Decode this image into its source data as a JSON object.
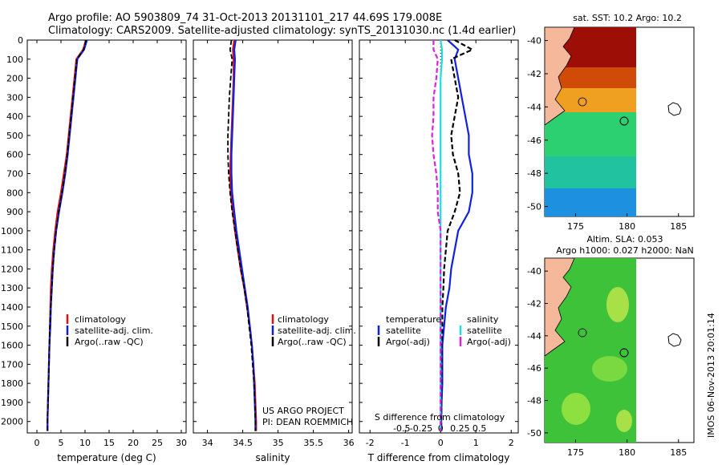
{
  "header": {
    "line1": "Argo profile: AO 5903809_74 31-Oct-2013 20131101_217 44.69S 179.008E",
    "line2": "Climatology: CARS2009. Satellite-adjusted climatology: synTS_20131030.nc (1.4d earlier)"
  },
  "panel1": {
    "xlabel": "temperature (deg C)",
    "xticks": [
      0,
      5,
      10,
      15,
      20,
      25,
      30
    ],
    "xlim": [
      -2,
      31
    ],
    "legend": [
      "climatology",
      "satellite-adj. clim.",
      "Argo(..raw -QC)"
    ]
  },
  "panel2": {
    "xlabel": "salinity",
    "xticks": [
      34,
      34.5,
      35,
      35.5,
      36
    ],
    "xlim": [
      33.8,
      36.05
    ],
    "legend": [
      "climatology",
      "satellite-adj. clim.",
      "Argo(..raw -QC)"
    ],
    "note1": "US ARGO PROJECT",
    "note2": "PI: DEAN ROEMMICH"
  },
  "panel3": {
    "xlabel": "T difference from climatology",
    "top_axis_label": "S difference from climatology",
    "xticks": [
      -2,
      -1,
      0,
      1,
      2
    ],
    "xlim": [
      -2.3,
      2.2
    ],
    "sticks_labels": [
      "-0.5",
      "-0.25",
      "0",
      "0.25",
      "0.5"
    ],
    "sticks_values": [
      -0.5,
      -0.25,
      0,
      0.25,
      0.5
    ],
    "legend_temp_title": "temperature",
    "legend_sal_title": "salinity",
    "legend_temp": [
      "satellite",
      "Argo(-adj)"
    ],
    "legend_sal": [
      "satellite",
      "Argo(-adj)"
    ]
  },
  "depth_axis": {
    "ticks": [
      0,
      100,
      200,
      300,
      400,
      500,
      600,
      700,
      800,
      900,
      1000,
      1100,
      1200,
      1300,
      1400,
      1500,
      1600,
      1700,
      1800,
      1900,
      2000
    ],
    "ylim": [
      0,
      2060
    ]
  },
  "map1": {
    "title": "sat. SST: 10.2 Argo: 10.2",
    "xticks": [
      175,
      180,
      185
    ],
    "yticks": [
      -40,
      -42,
      -44,
      -46,
      -48,
      -50
    ]
  },
  "map2": {
    "title1": "Altim. SLA: 0.053",
    "title2": "Argo h1000: 0.027 h2000: NaN",
    "xticks": [
      175,
      180,
      185
    ],
    "yticks": [
      -40,
      -42,
      -44,
      -46,
      -48,
      -50
    ]
  },
  "side_label": "IMOS 06-Nov-2013 20:01:14",
  "colors": {
    "clim": "#e01010",
    "sat": "#1020e0",
    "argo": "#000000",
    "cyan": "#22dddd",
    "magenta": "#dd22dd"
  },
  "chart_data": {
    "type": "line",
    "depth": [
      0,
      50,
      100,
      200,
      300,
      400,
      500,
      600,
      700,
      800,
      900,
      1000,
      1100,
      1200,
      1300,
      1400,
      1500,
      1600,
      1700,
      1800,
      1900,
      2000,
      2050
    ],
    "series": [
      {
        "name": "temperature climatology",
        "values": [
          10.2,
          9.6,
          8.2,
          7.8,
          7.4,
          7.0,
          6.6,
          6.2,
          5.6,
          5.0,
          4.3,
          3.8,
          3.4,
          3.1,
          2.9,
          2.8,
          2.7,
          2.6,
          2.5,
          2.4,
          2.3,
          2.2,
          2.2
        ]
      },
      {
        "name": "temperature satellite-adj",
        "values": [
          10.4,
          9.8,
          8.4,
          8.0,
          7.6,
          7.2,
          6.8,
          6.4,
          5.9,
          5.3,
          4.6,
          4.0,
          3.6,
          3.3,
          3.1,
          2.9,
          2.8,
          2.6,
          2.5,
          2.4,
          2.3,
          2.2,
          2.2
        ]
      },
      {
        "name": "temperature Argo",
        "values": [
          10.2,
          9.7,
          8.3,
          7.9,
          7.5,
          7.1,
          6.7,
          6.3,
          5.8,
          5.2,
          4.5,
          4.0,
          3.6,
          3.3,
          3.1,
          2.9,
          2.7,
          2.6,
          2.5,
          2.4,
          2.3,
          2.2,
          2.2
        ]
      },
      {
        "name": "salinity climatology",
        "values": [
          34.38,
          34.36,
          34.37,
          34.37,
          34.36,
          34.35,
          34.34,
          34.33,
          34.32,
          34.33,
          34.36,
          34.39,
          34.43,
          34.47,
          34.52,
          34.56,
          34.6,
          34.63,
          34.65,
          34.67,
          34.68,
          34.69,
          34.69
        ]
      },
      {
        "name": "salinity satellite-adj",
        "values": [
          34.4,
          34.38,
          34.39,
          34.38,
          34.37,
          34.36,
          34.35,
          34.34,
          34.34,
          34.35,
          34.38,
          34.41,
          34.45,
          34.49,
          34.53,
          34.57,
          34.6,
          34.63,
          34.65,
          34.66,
          34.67,
          34.68,
          34.68
        ]
      },
      {
        "name": "salinity Argo",
        "values": [
          34.34,
          34.32,
          34.35,
          34.33,
          34.31,
          34.3,
          34.29,
          34.29,
          34.3,
          34.32,
          34.35,
          34.39,
          34.43,
          34.47,
          34.52,
          34.56,
          34.59,
          34.62,
          34.64,
          34.66,
          34.67,
          34.68,
          34.68
        ]
      },
      {
        "name": "T diff satellite",
        "values": [
          0.2,
          0.5,
          0.4,
          0.5,
          0.6,
          0.7,
          0.8,
          0.8,
          0.9,
          0.9,
          0.8,
          0.5,
          0.4,
          0.3,
          0.25,
          0.15,
          0.1,
          0.05,
          0.05,
          0.05,
          0.03,
          0.02,
          0.02
        ]
      },
      {
        "name": "T diff Argo",
        "values": [
          0.4,
          0.9,
          0.3,
          0.4,
          0.5,
          0.4,
          0.3,
          0.35,
          0.5,
          0.55,
          0.4,
          0.2,
          0.15,
          0.1,
          0.08,
          0.05,
          0.05,
          0.03,
          0.03,
          0.02,
          0.02,
          0.02,
          0.02
        ]
      },
      {
        "name": "S diff satellite",
        "values": [
          0.0,
          0.01,
          0.01,
          0.0,
          0.0,
          0.0,
          0.0,
          0.0,
          0.0,
          0.0,
          0.0,
          0.0,
          0.0,
          0.0,
          0.0,
          0.0,
          0.0,
          0.0,
          0.0,
          0.0,
          0.0,
          0.0,
          0.0
        ]
      },
      {
        "name": "S diff Argo",
        "values": [
          -0.05,
          -0.05,
          -0.02,
          -0.03,
          -0.05,
          -0.05,
          -0.06,
          -0.05,
          -0.03,
          -0.02,
          -0.02,
          0.0,
          0.0,
          0.0,
          0.0,
          0.0,
          0.0,
          0.0,
          0.0,
          0.0,
          0.0,
          0.0,
          0.0
        ]
      }
    ]
  }
}
